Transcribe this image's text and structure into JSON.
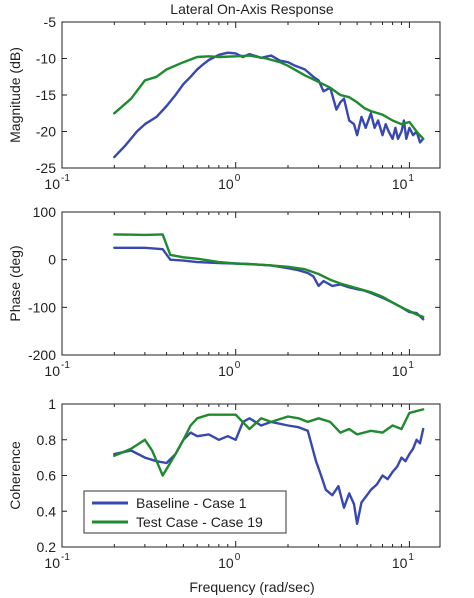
{
  "title": "Lateral On-Axis Response",
  "xlabel": "Frequency (rad/sec)",
  "colors": {
    "baseline": "#3848b0",
    "test": "#1f8a2e"
  },
  "legend": {
    "placement": "bottom-left of third panel",
    "items": [
      {
        "label": "Baseline - Case 1",
        "color": "#3848b0"
      },
      {
        "label": "Test Case - Case 19",
        "color": "#1f8a2e"
      }
    ]
  },
  "chart_data": [
    {
      "type": "line",
      "ylabel": "Magnitude (dB)",
      "xscale": "log",
      "xlim": [
        0.1,
        15
      ],
      "ylim": [
        -25,
        -5
      ],
      "yticks": [
        -25,
        -20,
        -15,
        -10,
        -5
      ],
      "xticks": [
        {
          "base": "10",
          "exp": "-1",
          "value": 0.1
        },
        {
          "base": "10",
          "exp": "0",
          "value": 1
        },
        {
          "base": "10",
          "exp": "1",
          "value": 10
        }
      ],
      "series": [
        {
          "name": "Baseline - Case 1",
          "color": "#3848b0",
          "x": [
            0.2,
            0.23,
            0.27,
            0.3,
            0.35,
            0.4,
            0.45,
            0.5,
            0.55,
            0.6,
            0.65,
            0.7,
            0.8,
            0.9,
            1.0,
            1.1,
            1.2,
            1.4,
            1.6,
            1.8,
            2.0,
            2.2,
            2.5,
            2.8,
            3.0,
            3.2,
            3.5,
            3.8,
            4.0,
            4.2,
            4.5,
            4.8,
            5.0,
            5.3,
            5.6,
            6.0,
            6.3,
            6.6,
            7.0,
            7.3,
            7.6,
            8.0,
            8.3,
            8.6,
            9.0,
            9.3,
            9.6,
            10.0,
            10.5,
            11.0,
            11.5,
            12.0
          ],
          "y": [
            -23.5,
            -22.0,
            -20.0,
            -19.0,
            -18.0,
            -16.5,
            -15.0,
            -13.5,
            -12.5,
            -11.5,
            -10.8,
            -10.2,
            -9.5,
            -9.2,
            -9.3,
            -9.8,
            -9.4,
            -9.9,
            -9.6,
            -10.3,
            -10.5,
            -11.0,
            -11.5,
            -12.5,
            -13.0,
            -14.5,
            -14.0,
            -17.0,
            -16.0,
            -15.5,
            -18.5,
            -19.0,
            -20.5,
            -18.0,
            -19.5,
            -17.5,
            -19.5,
            -18.5,
            -20.5,
            -19.0,
            -20.0,
            -21.0,
            -19.5,
            -21.0,
            -20.0,
            -18.5,
            -21.0,
            -19.5,
            -20.5,
            -20.0,
            -21.5,
            -21.0
          ]
        },
        {
          "name": "Test Case - Case 19",
          "color": "#1f8a2e",
          "x": [
            0.2,
            0.25,
            0.3,
            0.35,
            0.4,
            0.5,
            0.6,
            0.7,
            0.8,
            1.0,
            1.2,
            1.5,
            1.8,
            2.0,
            2.5,
            3.0,
            3.5,
            4.0,
            4.5,
            5.0,
            5.5,
            6.0,
            7.0,
            8.0,
            9.0,
            10.0,
            11.0,
            12.0
          ],
          "y": [
            -17.5,
            -15.5,
            -13.0,
            -12.5,
            -11.5,
            -10.5,
            -9.8,
            -9.7,
            -9.8,
            -9.7,
            -9.6,
            -10.0,
            -10.5,
            -11.0,
            -12.3,
            -13.2,
            -14.0,
            -15.0,
            -15.3,
            -16.0,
            -16.8,
            -17.2,
            -17.7,
            -18.5,
            -19.0,
            -18.7,
            -20.0,
            -21.0
          ]
        }
      ]
    },
    {
      "type": "line",
      "ylabel": "Phase (deg)",
      "xscale": "log",
      "xlim": [
        0.1,
        15
      ],
      "ylim": [
        -200,
        100
      ],
      "yticks": [
        -200,
        -100,
        0,
        100
      ],
      "xticks": [
        {
          "base": "10",
          "exp": "-1",
          "value": 0.1
        },
        {
          "base": "10",
          "exp": "0",
          "value": 1
        },
        {
          "base": "10",
          "exp": "1",
          "value": 10
        }
      ],
      "series": [
        {
          "name": "Baseline - Case 1",
          "color": "#3848b0",
          "x": [
            0.2,
            0.3,
            0.38,
            0.42,
            0.5,
            0.6,
            0.8,
            1.0,
            1.3,
            1.6,
            2.0,
            2.3,
            2.6,
            2.8,
            3.0,
            3.2,
            3.4,
            3.6,
            4.0,
            4.5,
            5.0,
            5.5,
            6.0,
            7.0,
            8.0,
            9.0,
            10.0,
            11.0,
            12.0
          ],
          "y": [
            25,
            25,
            22,
            0,
            -2,
            -5,
            -7,
            -8,
            -10,
            -12,
            -18,
            -22,
            -28,
            -35,
            -55,
            -45,
            -50,
            -55,
            -52,
            -58,
            -62,
            -65,
            -70,
            -80,
            -90,
            -100,
            -110,
            -112,
            -125
          ]
        },
        {
          "name": "Test Case - Case 19",
          "color": "#1f8a2e",
          "x": [
            0.2,
            0.3,
            0.38,
            0.42,
            0.5,
            0.6,
            0.8,
            1.0,
            1.3,
            1.6,
            2.0,
            2.5,
            3.0,
            3.5,
            4.0,
            5.0,
            6.0,
            7.0,
            8.0,
            9.0,
            10.0,
            11.0,
            12.0
          ],
          "y": [
            53,
            52,
            53,
            10,
            5,
            2,
            -5,
            -8,
            -10,
            -12,
            -15,
            -20,
            -30,
            -42,
            -50,
            -60,
            -68,
            -78,
            -90,
            -100,
            -108,
            -115,
            -120
          ]
        }
      ]
    },
    {
      "type": "line",
      "ylabel": "Coherence",
      "xscale": "log",
      "xlim": [
        0.1,
        15
      ],
      "ylim": [
        0.2,
        1.0
      ],
      "yticks": [
        0.2,
        0.4,
        0.6,
        0.8,
        1
      ],
      "xticks": [
        {
          "base": "10",
          "exp": "-1",
          "value": 0.1
        },
        {
          "base": "10",
          "exp": "0",
          "value": 1
        },
        {
          "base": "10",
          "exp": "1",
          "value": 10
        }
      ],
      "series": [
        {
          "name": "Baseline - Case 1",
          "color": "#3848b0",
          "x": [
            0.2,
            0.25,
            0.3,
            0.35,
            0.4,
            0.45,
            0.5,
            0.55,
            0.6,
            0.7,
            0.8,
            0.9,
            1.0,
            1.1,
            1.2,
            1.4,
            1.6,
            2.0,
            2.3,
            2.6,
            2.9,
            3.1,
            3.3,
            3.6,
            3.9,
            4.2,
            4.5,
            4.8,
            5.0,
            5.3,
            5.6,
            6.0,
            6.5,
            7.0,
            7.5,
            8.0,
            8.5,
            9.0,
            9.5,
            10.0,
            10.5,
            11.0,
            11.5,
            12.0
          ],
          "y": [
            0.72,
            0.74,
            0.7,
            0.68,
            0.67,
            0.72,
            0.8,
            0.84,
            0.82,
            0.83,
            0.8,
            0.82,
            0.8,
            0.9,
            0.92,
            0.88,
            0.9,
            0.88,
            0.87,
            0.85,
            0.68,
            0.6,
            0.52,
            0.49,
            0.54,
            0.42,
            0.5,
            0.44,
            0.33,
            0.45,
            0.48,
            0.52,
            0.55,
            0.6,
            0.58,
            0.62,
            0.65,
            0.7,
            0.68,
            0.72,
            0.75,
            0.8,
            0.78,
            0.86
          ]
        },
        {
          "name": "Test Case - Case 19",
          "color": "#1f8a2e",
          "x": [
            0.2,
            0.25,
            0.3,
            0.33,
            0.38,
            0.45,
            0.5,
            0.55,
            0.6,
            0.7,
            0.8,
            1.0,
            1.2,
            1.4,
            1.6,
            2.0,
            2.3,
            2.6,
            3.0,
            3.5,
            4.0,
            4.5,
            5.0,
            6.0,
            7.0,
            8.0,
            9.0,
            10.0,
            11.0,
            12.0
          ],
          "y": [
            0.71,
            0.75,
            0.8,
            0.74,
            0.6,
            0.72,
            0.8,
            0.88,
            0.92,
            0.94,
            0.94,
            0.94,
            0.86,
            0.92,
            0.9,
            0.93,
            0.92,
            0.9,
            0.92,
            0.9,
            0.84,
            0.86,
            0.83,
            0.85,
            0.84,
            0.88,
            0.86,
            0.95,
            0.96,
            0.97
          ]
        }
      ]
    }
  ]
}
